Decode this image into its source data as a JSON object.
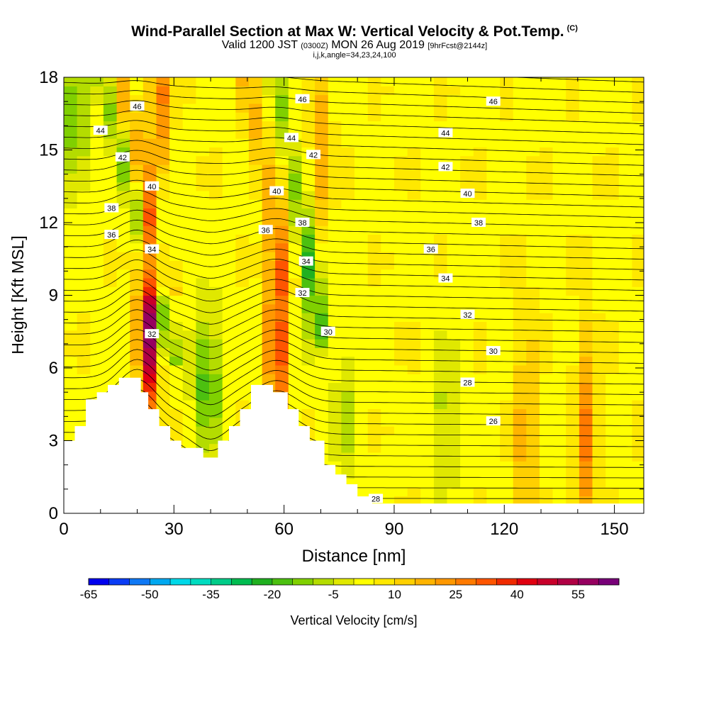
{
  "title": {
    "main": "Wind-Parallel Section at Max W: Vertical Velocity & Pot.Temp.",
    "copyright": "(C)",
    "line2_a": "Valid 1200 JST",
    "line2_b": "(0300Z)",
    "line2_c": "MON 26 Aug 2019",
    "line2_d": "[9hrFcst@2144z]",
    "line3": "i,j,k,angle=34,23,24,100"
  },
  "chart_data": {
    "type": "heatmap",
    "xlabel": "Distance [nm]",
    "ylabel": "Height [Kft MSL]",
    "xlim": [
      0,
      158
    ],
    "ylim": [
      0,
      18
    ],
    "x_ticks": [
      0,
      30,
      60,
      90,
      120,
      150
    ],
    "y_ticks": [
      0,
      3,
      6,
      9,
      12,
      15,
      18
    ],
    "fill_variable": "Vertical Velocity [cm/s]",
    "colorbar": {
      "label": "Vertical Velocity [cm/s]",
      "tick_labels": [
        "-65",
        "-50",
        "-35",
        "-20",
        "-5",
        "10",
        "25",
        "40",
        "55"
      ],
      "tick_values": [
        -65,
        -50,
        -35,
        -20,
        -5,
        10,
        25,
        40,
        55
      ],
      "range": [
        -65,
        65
      ],
      "colors": [
        "#0000ee",
        "#0a3cf5",
        "#0f78f5",
        "#00a8f0",
        "#00d8e8",
        "#00dcc0",
        "#00cc88",
        "#00bc50",
        "#20b020",
        "#4cc010",
        "#80d000",
        "#b4dc00",
        "#e0e800",
        "#ffff00",
        "#ffe800",
        "#ffd000",
        "#ffb400",
        "#ff9800",
        "#ff7a00",
        "#ff5500",
        "#f02a00",
        "#e00010",
        "#c8002a",
        "#b00044",
        "#960060",
        "#780078"
      ]
    },
    "contour_variable": "Potential temperature",
    "contour_labels": [
      {
        "x": 20,
        "y": 16.8,
        "v": "46"
      },
      {
        "x": 65,
        "y": 17.1,
        "v": "46"
      },
      {
        "x": 117,
        "y": 17.0,
        "v": "46"
      },
      {
        "x": 10,
        "y": 15.8,
        "v": "44"
      },
      {
        "x": 62,
        "y": 15.5,
        "v": "44"
      },
      {
        "x": 104,
        "y": 15.7,
        "v": "44"
      },
      {
        "x": 16,
        "y": 14.7,
        "v": "42"
      },
      {
        "x": 68,
        "y": 14.8,
        "v": "42"
      },
      {
        "x": 104,
        "y": 14.3,
        "v": "42"
      },
      {
        "x": 24,
        "y": 13.5,
        "v": "40"
      },
      {
        "x": 58,
        "y": 13.3,
        "v": "40"
      },
      {
        "x": 110,
        "y": 13.2,
        "v": "40"
      },
      {
        "x": 13,
        "y": 12.6,
        "v": "38"
      },
      {
        "x": 65,
        "y": 12.0,
        "v": "38"
      },
      {
        "x": 113,
        "y": 12.0,
        "v": "38"
      },
      {
        "x": 13,
        "y": 11.5,
        "v": "36"
      },
      {
        "x": 55,
        "y": 11.7,
        "v": "36"
      },
      {
        "x": 100,
        "y": 10.9,
        "v": "36"
      },
      {
        "x": 24,
        "y": 10.9,
        "v": "34"
      },
      {
        "x": 66,
        "y": 10.4,
        "v": "34"
      },
      {
        "x": 104,
        "y": 9.7,
        "v": "34"
      },
      {
        "x": 24,
        "y": 7.4,
        "v": "32"
      },
      {
        "x": 65,
        "y": 9.1,
        "v": "32"
      },
      {
        "x": 110,
        "y": 8.2,
        "v": "32"
      },
      {
        "x": 72,
        "y": 7.5,
        "v": "30"
      },
      {
        "x": 117,
        "y": 6.7,
        "v": "30"
      },
      {
        "x": 110,
        "y": 5.4,
        "v": "28"
      },
      {
        "x": 85,
        "y": 0.6,
        "v": "28"
      },
      {
        "x": 117,
        "y": 3.8,
        "v": "26"
      }
    ],
    "updraft_maxima": [
      {
        "x": 23,
        "y": 8.5,
        "strength": 60
      },
      {
        "x": 58,
        "y": 7.2,
        "strength": 35
      },
      {
        "x": 26,
        "y": 17.0,
        "strength": 25
      },
      {
        "x": 70,
        "y": 14.0,
        "strength": 18
      },
      {
        "x": 142,
        "y": 3.0,
        "strength": 22
      },
      {
        "x": 126,
        "y": 3.0,
        "strength": 18
      }
    ],
    "downdraft_minima": [
      {
        "x": 39,
        "y": 5.5,
        "strength": -22
      },
      {
        "x": 3,
        "y": 16.0,
        "strength": -18
      },
      {
        "x": 25,
        "y": 11.5,
        "strength": -20
      },
      {
        "x": 68,
        "y": 10.0,
        "strength": -18
      },
      {
        "x": 104,
        "y": 4.0,
        "strength": -12
      },
      {
        "x": 77,
        "y": 4.0,
        "strength": -10
      }
    ],
    "terrain_heights_kft": [
      [
        0,
        3.0
      ],
      [
        3,
        3.0
      ],
      [
        3,
        3.6
      ],
      [
        6,
        3.6
      ],
      [
        6,
        4.7
      ],
      [
        9,
        4.7
      ],
      [
        9,
        5.0
      ],
      [
        12,
        5.0
      ],
      [
        12,
        5.3
      ],
      [
        15,
        5.3
      ],
      [
        15,
        5.6
      ],
      [
        21,
        5.6
      ],
      [
        21,
        5.0
      ],
      [
        23,
        5.0
      ],
      [
        23,
        4.3
      ],
      [
        26,
        4.3
      ],
      [
        26,
        3.6
      ],
      [
        29,
        3.6
      ],
      [
        29,
        3.0
      ],
      [
        32,
        3.0
      ],
      [
        32,
        2.7
      ],
      [
        38,
        2.7
      ],
      [
        38,
        2.3
      ],
      [
        42,
        2.3
      ],
      [
        42,
        3.0
      ],
      [
        45,
        3.0
      ],
      [
        45,
        3.6
      ],
      [
        48,
        3.6
      ],
      [
        48,
        4.3
      ],
      [
        51,
        4.3
      ],
      [
        51,
        5.3
      ],
      [
        57,
        5.3
      ],
      [
        57,
        5.0
      ],
      [
        61,
        5.0
      ],
      [
        61,
        4.3
      ],
      [
        64,
        4.3
      ],
      [
        64,
        3.6
      ],
      [
        67,
        3.6
      ],
      [
        67,
        3.0
      ],
      [
        71,
        3.0
      ],
      [
        71,
        2.0
      ],
      [
        74,
        2.0
      ],
      [
        74,
        1.6
      ],
      [
        77,
        1.6
      ],
      [
        77,
        1.2
      ],
      [
        80,
        1.2
      ],
      [
        80,
        0.7
      ],
      [
        84,
        0.7
      ],
      [
        84,
        0.4
      ],
      [
        158,
        0.4
      ]
    ]
  }
}
